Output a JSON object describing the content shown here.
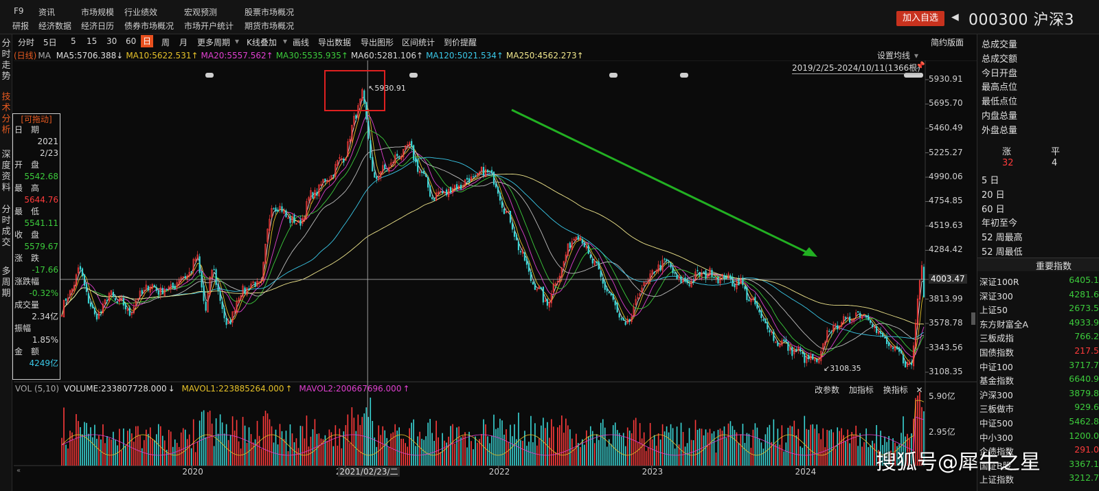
{
  "topbar": {
    "row1": [
      "F9",
      "资讯",
      "市场规模",
      "行业绩效",
      "宏观预测",
      "股票市场概况"
    ],
    "row2": [
      "研报",
      "经济数据",
      "经济日历",
      "债券市场概况",
      "市场开户统计",
      "期货市场概况"
    ],
    "add_favorite": "加入自选",
    "stock_title": "000300 沪深3"
  },
  "leftnav": [
    "分时走势",
    "技术分析",
    "深度资料",
    "分时成交",
    "多周期"
  ],
  "toolbar": {
    "items": [
      "分时",
      "5日",
      "5",
      "15",
      "30",
      "60",
      "日",
      "周",
      "月",
      "更多周期",
      "K线叠加",
      "画线",
      "导出数据",
      "导出图形",
      "区间统计",
      "到价提醒"
    ],
    "active": "日",
    "simple_layout": "简约版面"
  },
  "ma_line": {
    "period": "(日线)",
    "ma": "MA",
    "items": [
      {
        "text": "MA5:5706.388",
        "arrow": "↓",
        "color": "#e0e0e0"
      },
      {
        "text": "MA10:5622.531",
        "arrow": "↑",
        "color": "#e6c229"
      },
      {
        "text": "MA20:5557.562",
        "arrow": "↑",
        "color": "#e040d0"
      },
      {
        "text": "MA30:5535.935",
        "arrow": "↑",
        "color": "#3ccc3c"
      },
      {
        "text": "MA60:5281.106",
        "arrow": "↑",
        "color": "#d8d8d8"
      },
      {
        "text": "MA120:5021.534",
        "arrow": "↑",
        "color": "#3ac8e8"
      },
      {
        "text": "MA250:4562.273",
        "arrow": "↑",
        "color": "#f0e68c"
      }
    ]
  },
  "chart_header": {
    "settings": "设置均线",
    "range": "2019/2/25-2024/10/11(1366根)"
  },
  "infobox": {
    "title": "[可拖动]",
    "rows": [
      {
        "label": "日　期",
        "value": "2021",
        "color": "#d8d8d8"
      },
      {
        "label": "",
        "value": "2/23",
        "color": "#d8d8d8"
      },
      {
        "label": "开　盘",
        "value": "5542.68",
        "color": "#3ccc3c"
      },
      {
        "label": "最　高",
        "value": "5644.76",
        "color": "#ff3b3b"
      },
      {
        "label": "最　低",
        "value": "5541.11",
        "color": "#3ccc3c"
      },
      {
        "label": "收　盘",
        "value": "5579.67",
        "color": "#3ccc3c"
      },
      {
        "label": "涨　跌",
        "value": "-17.66",
        "color": "#3ccc3c"
      },
      {
        "label": "涨跌幅",
        "value": "-0.32%",
        "color": "#3ccc3c"
      },
      {
        "label": "成交量",
        "value": "2.34亿",
        "color": "#d8d8d8"
      },
      {
        "label": "振幅",
        "value": "1.85%",
        "color": "#d8d8d8"
      },
      {
        "label": "金　额",
        "value": "4249亿",
        "color": "#3ac8e8"
      }
    ]
  },
  "chart_data": {
    "type": "candlestick",
    "period": "daily",
    "x_range": [
      "2019/2/25",
      "2024/10/11"
    ],
    "bars": 1366,
    "y_ticks": [
      5930.91,
      5695.7,
      5460.49,
      5225.27,
      4990.06,
      4754.85,
      4519.63,
      4284.42,
      4003.47,
      3813.99,
      3578.78,
      3343.56,
      3108.35
    ],
    "crosshair_value": 4003.47,
    "crosshair_date": "2021/02/23/二",
    "high_marker": 5930.91,
    "low_marker": 3108.35,
    "x_axis": [
      "2020",
      "2021",
      "2022",
      "2023",
      "2024"
    ],
    "close_path": [
      [
        "2019-02-25",
        3700
      ],
      [
        "2019-04-08",
        4100
      ],
      [
        "2019-05-15",
        3620
      ],
      [
        "2019-06-20",
        3860
      ],
      [
        "2019-08-05",
        3690
      ],
      [
        "2019-09-15",
        3940
      ],
      [
        "2019-11-01",
        3890
      ],
      [
        "2019-12-31",
        4096
      ],
      [
        "2020-01-14",
        4220
      ],
      [
        "2020-02-03",
        3690
      ],
      [
        "2020-02-20",
        4150
      ],
      [
        "2020-03-23",
        3530
      ],
      [
        "2020-04-30",
        3910
      ],
      [
        "2020-06-15",
        3980
      ],
      [
        "2020-07-09",
        4750
      ],
      [
        "2020-09-10",
        4520
      ],
      [
        "2020-10-10",
        4800
      ],
      [
        "2020-11-20",
        4980
      ],
      [
        "2020-12-31",
        5211
      ],
      [
        "2021-02-10",
        5807
      ],
      [
        "2021-03-09",
        4970
      ],
      [
        "2021-04-15",
        5100
      ],
      [
        "2021-05-31",
        5290
      ],
      [
        "2021-07-28",
        4800
      ],
      [
        "2021-09-15",
        4880
      ],
      [
        "2021-12-10",
        5060
      ],
      [
        "2022-01-28",
        4570
      ],
      [
        "2022-03-15",
        4050
      ],
      [
        "2022-04-26",
        3760
      ],
      [
        "2022-07-05",
        4480
      ],
      [
        "2022-09-30",
        3800
      ],
      [
        "2022-10-31",
        3510
      ],
      [
        "2022-12-07",
        3910
      ],
      [
        "2023-01-30",
        4190
      ],
      [
        "2023-03-15",
        3960
      ],
      [
        "2023-05-08",
        4070
      ],
      [
        "2023-07-31",
        3970
      ],
      [
        "2023-10-23",
        3420
      ],
      [
        "2024-01-31",
        3190
      ],
      [
        "2024-02-28",
        3520
      ],
      [
        "2024-05-20",
        3700
      ],
      [
        "2024-07-10",
        3400
      ],
      [
        "2024-09-13",
        3160
      ],
      [
        "2024-09-30",
        4017
      ],
      [
        "2024-10-08",
        4250
      ],
      [
        "2024-10-11",
        3870
      ]
    ],
    "volume_panel": {
      "label": "VOL (5,10)",
      "volume": "VOLUME:233807728.000",
      "volume_arrow": "↓",
      "mavol1": "MAVOL1:223885264.000",
      "mavol1_arrow": "↑",
      "mavol2": "MAVOL2:200667696.000",
      "mavol2_arrow": "↑",
      "y_ticks": [
        "5.90亿",
        "2.95亿"
      ],
      "buttons": [
        "改参数",
        "加指标",
        "换指标"
      ]
    }
  },
  "rightpanel": {
    "stats": [
      "总成交量",
      "总成交额",
      "今日开盘",
      "最高点位",
      "最低点位",
      "内盘总量",
      "外盘总量"
    ],
    "up_label": "涨",
    "flat_label": "平",
    "up_count": "32",
    "flat_count": "4",
    "periods": [
      "5 日",
      "20 日",
      "60 日",
      "年初至今",
      "52 周最高",
      "52 周最低"
    ],
    "index_header": "重要指数",
    "indices": [
      {
        "name": "深证100R",
        "value": "6405.1",
        "color": "#3ccc3c"
      },
      {
        "name": "深证300",
        "value": "4281.6",
        "color": "#3ccc3c"
      },
      {
        "name": "上证50",
        "value": "2673.5",
        "color": "#3ccc3c"
      },
      {
        "name": "东方财富全A",
        "value": "4933.9",
        "color": "#3ccc3c"
      },
      {
        "name": "三板成指",
        "value": "766.2",
        "color": "#3ccc3c"
      },
      {
        "name": "国债指数",
        "value": "217.5",
        "color": "#ff3b3b"
      },
      {
        "name": "中证100",
        "value": "3717.7",
        "color": "#3ccc3c"
      },
      {
        "name": "基金指数",
        "value": "6640.9",
        "color": "#3ccc3c"
      },
      {
        "name": "沪深300",
        "value": "3879.8",
        "color": "#3ccc3c"
      },
      {
        "name": "三板做市",
        "value": "929.6",
        "color": "#3ccc3c"
      },
      {
        "name": "中证500",
        "value": "5462.8",
        "color": "#3ccc3c"
      },
      {
        "name": "中小300",
        "value": "1200.0",
        "color": "#3ccc3c"
      },
      {
        "name": "企债指数",
        "value": "291.0",
        "color": "#ff3b3b"
      },
      {
        "name": "国证B股",
        "value": "3367.1",
        "color": "#3ccc3c"
      },
      {
        "name": "上证指数",
        "value": "3212.7",
        "color": "#3ccc3c"
      }
    ]
  },
  "watermark": "搜狐号@犀牛之星"
}
